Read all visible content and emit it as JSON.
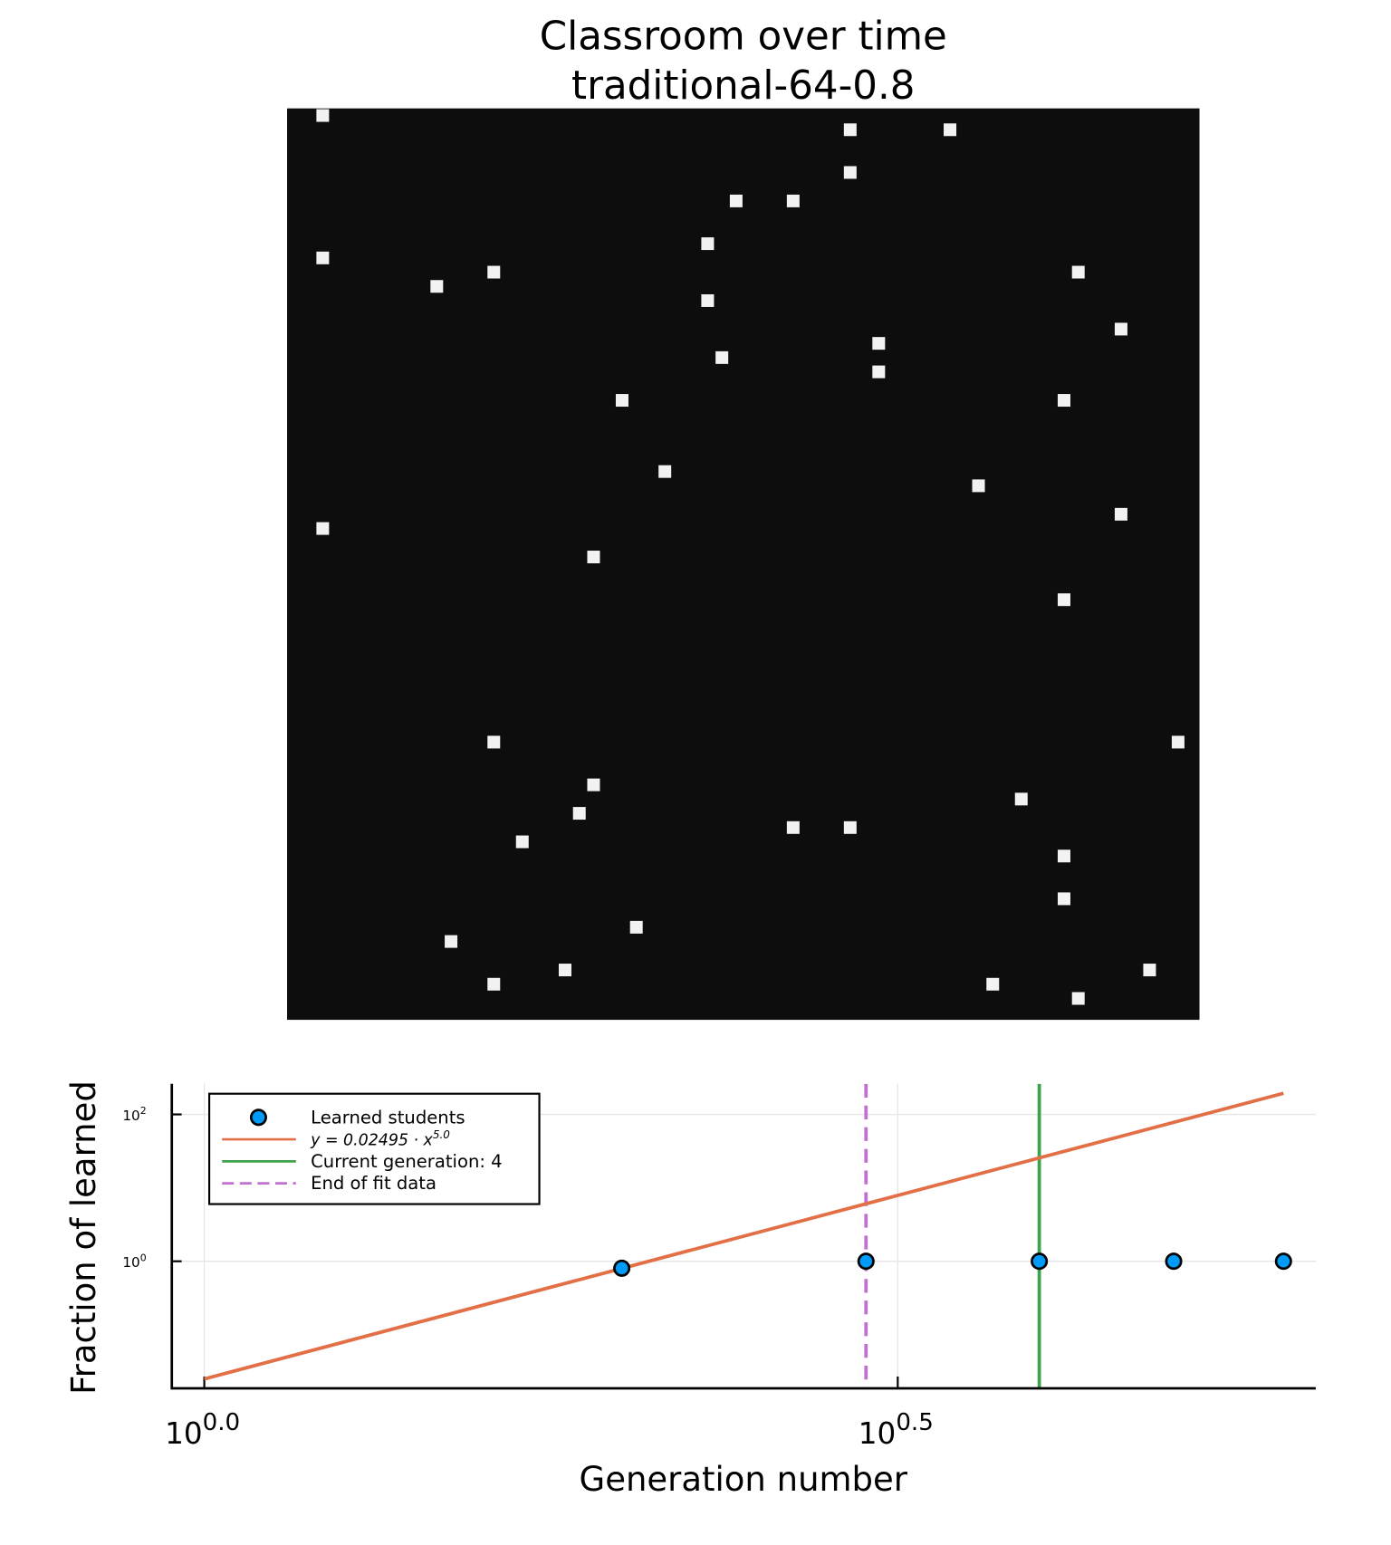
{
  "chart_data": [
    {
      "type": "heatmap",
      "title": "Classroom over time",
      "subtitle": "traditional-64-0.8",
      "background": "#0d0d0d",
      "color": "#f2f2f2",
      "xlim": [
        0,
        64
      ],
      "ylim": [
        0,
        64
      ],
      "x": [
        2,
        39,
        46,
        39,
        31,
        35,
        29,
        2,
        14,
        55,
        10,
        29,
        58,
        41,
        30,
        41,
        23,
        54,
        26,
        48,
        58,
        2,
        21,
        54,
        14,
        62,
        21,
        51,
        20,
        35,
        39,
        16,
        54,
        54,
        24,
        11,
        19,
        14,
        49,
        60,
        55
      ],
      "y": [
        0,
        1,
        1,
        4,
        6,
        6,
        9,
        10,
        11,
        11,
        12,
        13,
        15,
        16,
        17,
        18,
        20,
        20,
        25,
        26,
        28,
        29,
        31,
        34,
        44,
        44,
        47,
        48,
        49,
        50,
        50,
        51,
        52,
        55,
        57,
        58,
        60,
        61,
        61,
        60,
        62
      ]
    },
    {
      "type": "line",
      "xlabel": "Generation number",
      "ylabel": "Fraction of learned",
      "xscale": "log",
      "yscale": "log",
      "grid": true,
      "legend": "top-left",
      "xlim": [
        0.9475,
        6.33
      ],
      "ylim": [
        0.0186,
        260.6
      ],
      "xticks": [
        {
          "value": 1,
          "label": "10",
          "exponent": "0.0"
        },
        {
          "value": 3.1623,
          "label": "10",
          "exponent": "0.5"
        }
      ],
      "yticks": [
        {
          "value": 1,
          "label": "10",
          "exponent": "0"
        },
        {
          "value": 100,
          "label": "10",
          "exponent": "2"
        }
      ],
      "series": [
        {
          "name": "Learned students",
          "type": "scatter",
          "color": "#009af9",
          "x": [
            2,
            3,
            4,
            5,
            6
          ],
          "values": [
            0.805,
            1,
            1,
            1,
            1
          ]
        },
        {
          "name": "y = 0.02495 · x",
          "name_superscript": "5.0",
          "type": "line",
          "color": "#e26f46",
          "x": [
            1,
            2,
            3,
            4,
            5,
            6
          ],
          "values": [
            0.02495,
            0.7984,
            6.0629,
            25.549,
            77.97,
            194.0
          ]
        }
      ],
      "vlines": [
        {
          "name": "Current generation: 4",
          "x": 4,
          "color": "#3da44d",
          "dashed": false
        },
        {
          "name": "End of fit data",
          "x": 3,
          "color": "#c271d2",
          "dashed": true
        }
      ]
    }
  ]
}
